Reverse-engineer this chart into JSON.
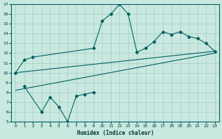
{
  "xlabel": "Humidex (Indice chaleur)",
  "xlim": [
    -0.5,
    23.5
  ],
  "ylim": [
    5,
    17
  ],
  "yticks": [
    5,
    6,
    7,
    8,
    9,
    10,
    11,
    12,
    13,
    14,
    15,
    16,
    17
  ],
  "xticks": [
    0,
    1,
    2,
    3,
    4,
    5,
    6,
    7,
    8,
    9,
    10,
    11,
    12,
    13,
    14,
    15,
    16,
    17,
    18,
    19,
    20,
    21,
    22,
    23
  ],
  "bg_color": "#c8e8e0",
  "grid_color": "#a8ccc8",
  "line_color": "#006060",
  "line1_x": [
    0,
    1,
    2,
    9,
    10,
    11,
    12,
    13,
    14,
    15,
    16,
    17,
    18,
    19,
    20,
    21,
    22,
    23
  ],
  "line1_y": [
    10.0,
    11.3,
    11.6,
    12.5,
    15.3,
    16.0,
    17.0,
    16.0,
    12.1,
    12.5,
    13.2,
    14.2,
    13.9,
    14.2,
    13.7,
    13.5,
    13.0,
    12.2
  ],
  "line2_x": [
    0,
    23
  ],
  "line2_y": [
    10.0,
    12.2
  ],
  "line3_x": [
    0,
    23
  ],
  "line3_y": [
    8.2,
    12.0
  ],
  "line4_x": [
    1,
    3,
    4,
    5,
    6,
    7,
    8,
    9
  ],
  "line4_y": [
    8.6,
    6.0,
    7.5,
    6.5,
    5.0,
    7.6,
    7.8,
    8.0
  ]
}
